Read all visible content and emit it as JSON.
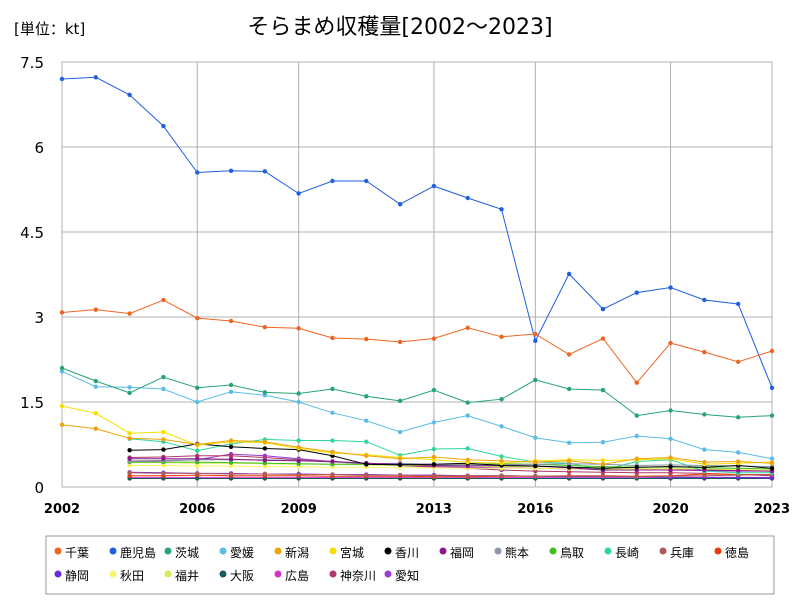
{
  "unit_label": "[単位：kt]",
  "chart_data": {
    "type": "line",
    "title": "そらまめ収穫量[2002～2023]",
    "xlabel": "",
    "ylabel": "",
    "xlim": [
      2002,
      2023
    ],
    "ylim": [
      0,
      7.5
    ],
    "x_ticks": [
      "2002",
      "2006",
      "2009",
      "2013",
      "2016",
      "2020",
      "2023"
    ],
    "y_ticks": [
      "0",
      "1.5",
      "3",
      "4.5",
      "6",
      "7.5"
    ],
    "grid": true,
    "legend_position": "bottom",
    "x": [
      2002,
      2003,
      2004,
      2005,
      2006,
      2007,
      2008,
      2009,
      2010,
      2011,
      2012,
      2013,
      2014,
      2015,
      2016,
      2017,
      2018,
      2019,
      2020,
      2021,
      2022,
      2023
    ],
    "series": [
      {
        "name": "千葉",
        "color": "#f06423",
        "values": [
          3.08,
          3.13,
          3.06,
          3.3,
          2.98,
          2.93,
          2.82,
          2.8,
          2.63,
          2.61,
          2.56,
          2.62,
          2.81,
          2.65,
          2.7,
          2.34,
          2.62,
          1.84,
          2.54,
          2.38,
          2.21,
          2.4
        ]
      },
      {
        "name": "鹿児島",
        "color": "#1f5fe0",
        "values": [
          7.2,
          7.23,
          6.92,
          6.37,
          5.55,
          5.58,
          5.57,
          5.18,
          5.4,
          5.4,
          4.99,
          5.31,
          5.1,
          4.9,
          2.58,
          3.76,
          3.14,
          3.43,
          3.52,
          3.3,
          3.23,
          1.75
        ]
      },
      {
        "name": "茨城",
        "color": "#27a37a",
        "values": [
          2.1,
          1.87,
          1.66,
          1.94,
          1.75,
          1.8,
          1.67,
          1.65,
          1.73,
          1.6,
          1.52,
          1.71,
          1.49,
          1.55,
          1.89,
          1.73,
          1.71,
          1.26,
          1.35,
          1.28,
          1.23,
          1.26
        ]
      },
      {
        "name": "愛媛",
        "color": "#5bbce8",
        "values": [
          2.04,
          1.77,
          1.76,
          1.73,
          1.5,
          1.68,
          1.62,
          1.5,
          1.31,
          1.17,
          0.97,
          1.14,
          1.26,
          1.07,
          0.87,
          0.78,
          0.79,
          0.9,
          0.85,
          0.66,
          0.61,
          0.5
        ]
      },
      {
        "name": "新潟",
        "color": "#f0a30a",
        "values": [
          1.1,
          1.03,
          0.86,
          0.84,
          0.75,
          0.82,
          0.8,
          0.7,
          0.62,
          0.55,
          0.5,
          0.53,
          0.48,
          0.46,
          0.44,
          0.46,
          0.4,
          0.5,
          0.52,
          0.44,
          0.45,
          0.42
        ]
      },
      {
        "name": "宮城",
        "color": "#f5e000",
        "values": [
          1.43,
          1.3,
          0.95,
          0.97,
          0.74,
          0.8,
          0.78,
          0.68,
          0.6,
          0.57,
          0.52,
          0.48,
          0.44,
          0.42,
          0.46,
          0.48,
          0.47,
          0.48,
          0.5,
          0.4,
          0.42,
          0.44
        ]
      },
      {
        "name": "香川",
        "color": "#000000",
        "values": [
          null,
          null,
          0.65,
          0.66,
          0.76,
          0.71,
          0.68,
          0.66,
          0.55,
          0.4,
          0.39,
          0.4,
          0.42,
          0.38,
          0.37,
          0.35,
          0.33,
          0.35,
          0.36,
          0.35,
          0.38,
          0.33
        ]
      },
      {
        "name": "福岡",
        "color": "#8a1a8a",
        "values": [
          null,
          null,
          0.5,
          0.5,
          0.5,
          0.49,
          0.47,
          0.46,
          0.45,
          0.42,
          0.4,
          0.38,
          0.37,
          0.38,
          0.37,
          0.34,
          0.3,
          0.3,
          0.3,
          0.3,
          0.29,
          0.28
        ]
      },
      {
        "name": "熊本",
        "color": "#8c96a8",
        "values": [
          null,
          null,
          0.46,
          0.47,
          0.48,
          0.48,
          0.48,
          0.47,
          0.44,
          0.41,
          0.42,
          0.4,
          0.39,
          0.39,
          0.4,
          0.41,
          0.4,
          0.38,
          0.39,
          0.38,
          0.37,
          0.36
        ]
      },
      {
        "name": "鳥取",
        "color": "#3fbf1f",
        "values": [
          null,
          null,
          0.44,
          0.44,
          0.44,
          0.43,
          0.42,
          0.41,
          0.4,
          0.4,
          0.39,
          0.38,
          0.4,
          0.41,
          0.4,
          0.38,
          0.36,
          0.35,
          0.36,
          0.34,
          0.33,
          0.32
        ]
      },
      {
        "name": "長崎",
        "color": "#2fd89a",
        "values": [
          null,
          null,
          0.85,
          0.8,
          0.64,
          0.76,
          0.84,
          0.82,
          0.82,
          0.8,
          0.56,
          0.67,
          0.68,
          0.54,
          0.44,
          0.42,
          0.3,
          0.45,
          0.48,
          0.28,
          0.25,
          0.25
        ]
      },
      {
        "name": "兵庫",
        "color": "#b05a5a",
        "values": [
          null,
          null,
          0.25,
          0.24,
          0.24,
          0.23,
          0.23,
          0.22,
          0.22,
          0.21,
          0.21,
          0.2,
          0.2,
          0.2,
          0.19,
          0.19,
          0.19,
          0.18,
          0.19,
          0.2,
          0.21,
          0.22
        ]
      },
      {
        "name": "徳島",
        "color": "#e83b0c",
        "values": [
          null,
          null,
          0.2,
          0.2,
          0.21,
          0.2,
          0.2,
          0.2,
          0.19,
          0.19,
          0.19,
          0.18,
          0.18,
          0.19,
          0.19,
          0.2,
          0.2,
          0.19,
          0.2,
          0.23,
          0.22,
          0.22
        ]
      },
      {
        "name": "静岡",
        "color": "#6a2ae0",
        "values": [
          null,
          null,
          0.26,
          0.25,
          0.24,
          0.24,
          0.23,
          0.23,
          0.22,
          0.22,
          0.21,
          0.21,
          0.2,
          0.2,
          0.19,
          0.18,
          0.18,
          0.18,
          0.17,
          0.17,
          0.17,
          0.16
        ]
      },
      {
        "name": "秋田",
        "color": "#f8f56a",
        "values": [
          null,
          null,
          0.38,
          0.38,
          0.37,
          0.37,
          0.36,
          0.36,
          0.35,
          0.35,
          0.34,
          0.34,
          0.33,
          0.33,
          0.33,
          0.32,
          0.32,
          0.31,
          0.31,
          0.3,
          0.3,
          0.3
        ]
      },
      {
        "name": "福井",
        "color": "#d4ec5a",
        "values": [
          null,
          null,
          0.43,
          0.43,
          0.42,
          0.42,
          0.41,
          0.4,
          0.4,
          0.39,
          0.38,
          0.38,
          0.37,
          0.36,
          0.36,
          0.35,
          0.34,
          0.33,
          0.33,
          0.32,
          0.31,
          0.3
        ]
      },
      {
        "name": "大阪",
        "color": "#1a5a5a",
        "values": [
          null,
          null,
          0.15,
          0.15,
          0.15,
          0.15,
          0.15,
          0.15,
          0.15,
          0.15,
          0.15,
          0.15,
          0.15,
          0.15,
          0.15,
          0.15,
          0.15,
          0.15,
          0.15,
          0.15,
          0.15,
          0.15
        ]
      },
      {
        "name": "広島",
        "color": "#d234c8",
        "values": [
          null,
          null,
          0.17,
          0.17,
          0.17,
          0.17,
          0.17,
          0.17,
          0.17,
          0.17,
          0.17,
          0.17,
          0.17,
          0.17,
          0.17,
          0.17,
          0.17,
          0.17,
          0.17,
          0.17,
          0.17,
          0.17
        ]
      },
      {
        "name": "神奈川",
        "color": "#b0386a",
        "values": [
          null,
          null,
          0.52,
          0.53,
          0.55,
          0.55,
          0.52,
          0.48,
          0.45,
          0.42,
          0.38,
          0.35,
          0.33,
          0.3,
          0.28,
          0.27,
          0.26,
          0.25,
          0.25,
          0.24,
          0.22,
          0.2
        ]
      },
      {
        "name": "愛知",
        "color": "#9a3ad8",
        "values": [
          null,
          null,
          0.45,
          0.46,
          0.48,
          0.58,
          0.55,
          0.5,
          0.45,
          0.4,
          0.38,
          0.36,
          0.35,
          0.34,
          0.33,
          0.32,
          0.31,
          0.3,
          0.3,
          0.29,
          0.28,
          0.28
        ]
      }
    ]
  }
}
